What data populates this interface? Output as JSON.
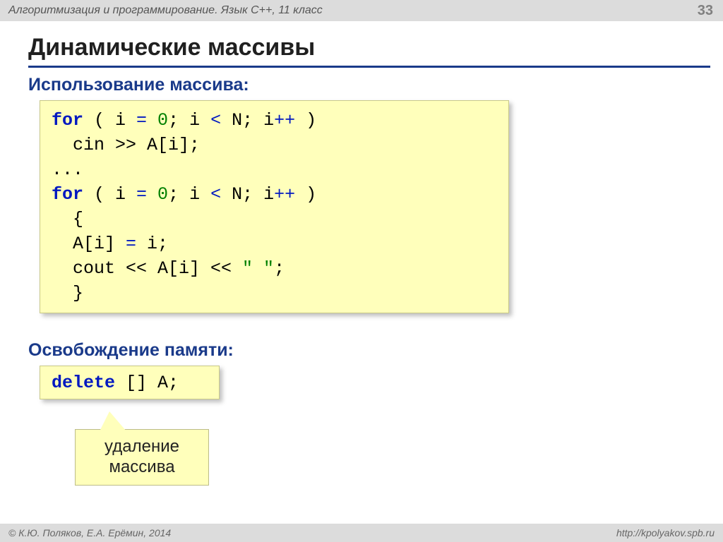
{
  "topbar": {
    "title": "Алгоритмизация и программирование. Язык C++, 11 класс"
  },
  "page_number": "33",
  "heading": "Динамические массивы",
  "sub1": "Использование массива:",
  "sub2": "Освобождение памяти:",
  "code1": {
    "tokens": [
      {
        "t": "for",
        "c": "kw"
      },
      {
        "t": " ( i"
      },
      {
        "t": " = ",
        "c": "par"
      },
      {
        "t": "0",
        "c": "lit"
      },
      {
        "t": "; i"
      },
      {
        "t": " < ",
        "c": "par"
      },
      {
        "t": "N; i"
      },
      {
        "t": "++",
        "c": "par"
      },
      {
        "t": " )\n"
      },
      {
        "t": "  cin >> A[i];\n"
      },
      {
        "t": "...\n"
      },
      {
        "t": "for",
        "c": "kw"
      },
      {
        "t": " ( i"
      },
      {
        "t": " = ",
        "c": "par"
      },
      {
        "t": "0",
        "c": "lit"
      },
      {
        "t": "; i"
      },
      {
        "t": " < ",
        "c": "par"
      },
      {
        "t": "N; i"
      },
      {
        "t": "++",
        "c": "par"
      },
      {
        "t": " )\n"
      },
      {
        "t": "  {\n"
      },
      {
        "t": "  A[i]"
      },
      {
        "t": " = ",
        "c": "par"
      },
      {
        "t": "i;\n"
      },
      {
        "t": "  cout << A[i] << "
      },
      {
        "t": "\" \"",
        "c": "lit"
      },
      {
        "t": ";\n"
      },
      {
        "t": "  }"
      }
    ]
  },
  "code2": {
    "tokens": [
      {
        "t": "delete",
        "c": "kw"
      },
      {
        "t": " [] A;"
      }
    ]
  },
  "callout": "удаление массива",
  "footer": {
    "left": "© К.Ю. Поляков, Е.А. Ерёмин, 2014",
    "right": "http://kpolyakov.spb.ru"
  },
  "colors": {
    "topbar_bg": "#dcdcdc",
    "heading_underline": "#1a3a8a",
    "codebox_bg": "#ffffbb",
    "codebox_border": "#c8c888",
    "kw_color": "#0018c0",
    "lit_color": "#008000"
  }
}
